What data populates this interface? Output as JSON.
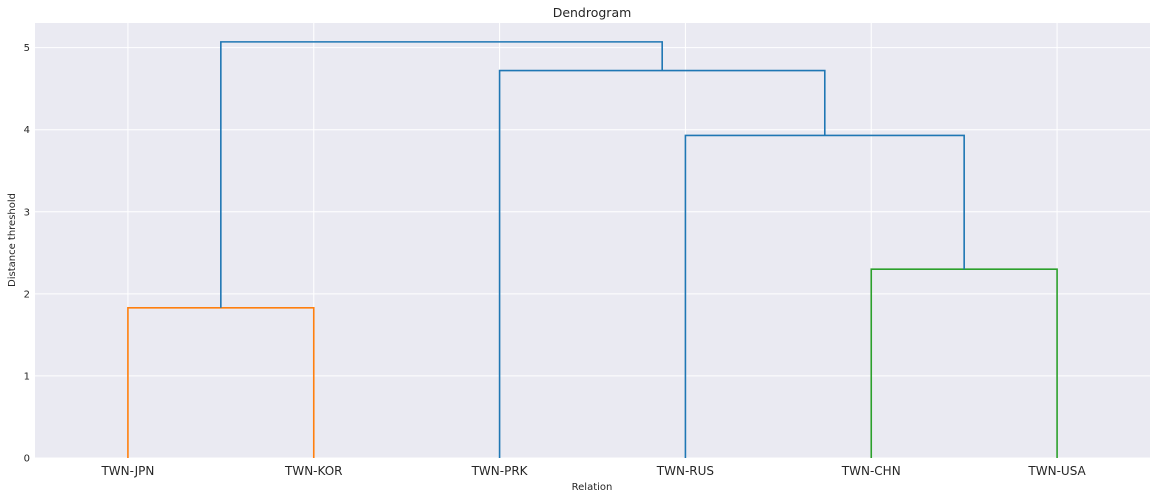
{
  "chart_data": {
    "type": "dendrogram",
    "title": "Dendrogram",
    "xlabel": "Relation",
    "ylabel": "Distance threshold",
    "ylim": [
      0,
      5.3
    ],
    "yticks": [
      "0",
      "1",
      "2",
      "3",
      "4",
      "5"
    ],
    "grid": true,
    "leaves": [
      "TWN-JPN",
      "TWN-KOR",
      "TWN-PRK",
      "TWN-RUS",
      "TWN-CHN",
      "TWN-USA"
    ],
    "links": [
      {
        "left": "TWN-JPN",
        "right": "TWN-KOR",
        "height": 1.83,
        "color": "#ff7f0e"
      },
      {
        "left": "TWN-CHN",
        "right": "TWN-USA",
        "height": 2.3,
        "color": "#2ca02c"
      },
      {
        "left": "TWN-RUS",
        "right": "(TWN-CHN, TWN-USA)",
        "height": 3.93,
        "color": "#1f77b4"
      },
      {
        "left": "TWN-PRK",
        "right": "(TWN-RUS, (TWN-CHN, TWN-USA))",
        "height": 4.72,
        "color": "#1f77b4"
      },
      {
        "left": "(TWN-JPN, TWN-KOR)",
        "right": "(TWN-PRK, (TWN-RUS, (TWN-CHN, TWN-USA)))",
        "height": 5.07,
        "color": "#1f77b4"
      }
    ],
    "colors": {
      "plot_bg": "#eaeaf2",
      "grid": "#ffffff"
    }
  }
}
